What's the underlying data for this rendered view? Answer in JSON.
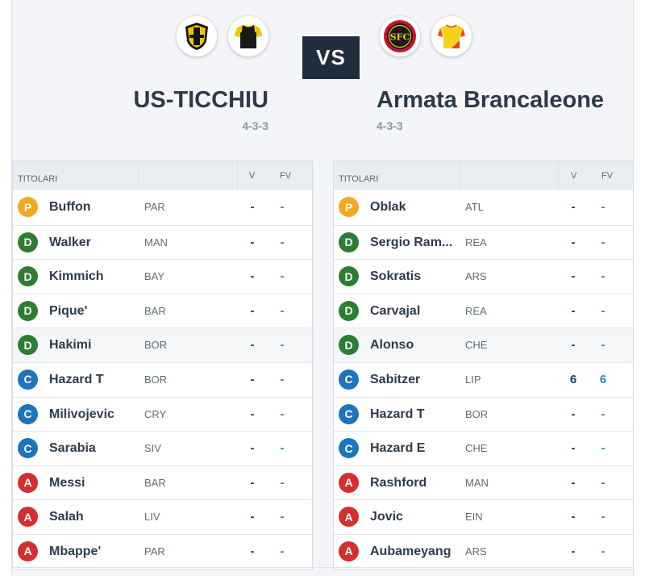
{
  "header": {
    "vs_label": "VS",
    "home": {
      "name": "US-TICCHIU",
      "formation": "4-3-3",
      "badge_icons": [
        "shield-yellow-black-icon",
        "jersey-black-yellow-icon"
      ]
    },
    "away": {
      "name": "Armata Brancaleone",
      "formation": "4-3-3",
      "badge_icons": [
        "sfc-crest-icon",
        "jersey-yellow-red-icon"
      ]
    }
  },
  "table_headers": {
    "starters": "TITOLARI",
    "vote": "V",
    "fantavote": "FV"
  },
  "role_colors": {
    "P": "#f5a623",
    "D": "#2e7d32",
    "C": "#1e73be",
    "A": "#d32f2f"
  },
  "home_players": [
    {
      "role": "P",
      "name": "Buffon",
      "club": "PAR",
      "v": "-",
      "fv": "-"
    },
    {
      "role": "D",
      "name": "Walker",
      "club": "MAN",
      "v": "-",
      "fv": "-"
    },
    {
      "role": "D",
      "name": "Kimmich",
      "club": "BAY",
      "v": "-",
      "fv": "-"
    },
    {
      "role": "D",
      "name": "Pique'",
      "club": "BAR",
      "v": "-",
      "fv": "-"
    },
    {
      "role": "D",
      "name": "Hakimi",
      "club": "BOR",
      "v": "-",
      "fv": "-"
    },
    {
      "role": "C",
      "name": "Hazard T",
      "club": "BOR",
      "v": "-",
      "fv": "-"
    },
    {
      "role": "C",
      "name": "Milivojevic",
      "club": "CRY",
      "v": "-",
      "fv": "-"
    },
    {
      "role": "C",
      "name": "Sarabia",
      "club": "SIV",
      "v": "-",
      "fv": "-"
    },
    {
      "role": "A",
      "name": "Messi",
      "club": "BAR",
      "v": "-",
      "fv": "-"
    },
    {
      "role": "A",
      "name": "Salah",
      "club": "LIV",
      "v": "-",
      "fv": "-"
    },
    {
      "role": "A",
      "name": "Mbappe'",
      "club": "PAR",
      "v": "-",
      "fv": "-"
    }
  ],
  "away_players": [
    {
      "role": "P",
      "name": "Oblak",
      "club": "ATL",
      "v": "-",
      "fv": "-"
    },
    {
      "role": "D",
      "name": "Sergio Ram...",
      "club": "REA",
      "v": "-",
      "fv": "-"
    },
    {
      "role": "D",
      "name": "Sokratis",
      "club": "ARS",
      "v": "-",
      "fv": "-"
    },
    {
      "role": "D",
      "name": "Carvajal",
      "club": "REA",
      "v": "-",
      "fv": "-"
    },
    {
      "role": "D",
      "name": "Alonso",
      "club": "CHE",
      "v": "-",
      "fv": "-"
    },
    {
      "role": "C",
      "name": "Sabitzer",
      "club": "LIP",
      "v": "6",
      "fv": "6"
    },
    {
      "role": "C",
      "name": "Hazard T",
      "club": "BOR",
      "v": "-",
      "fv": "-"
    },
    {
      "role": "C",
      "name": "Hazard E",
      "club": "CHE",
      "v": "-",
      "fv": "-"
    },
    {
      "role": "A",
      "name": "Rashford",
      "club": "MAN",
      "v": "-",
      "fv": "-"
    },
    {
      "role": "A",
      "name": "Jovic",
      "club": "EIN",
      "v": "-",
      "fv": "-"
    },
    {
      "role": "A",
      "name": "Aubameyang",
      "club": "ARS",
      "v": "-",
      "fv": "-"
    }
  ]
}
